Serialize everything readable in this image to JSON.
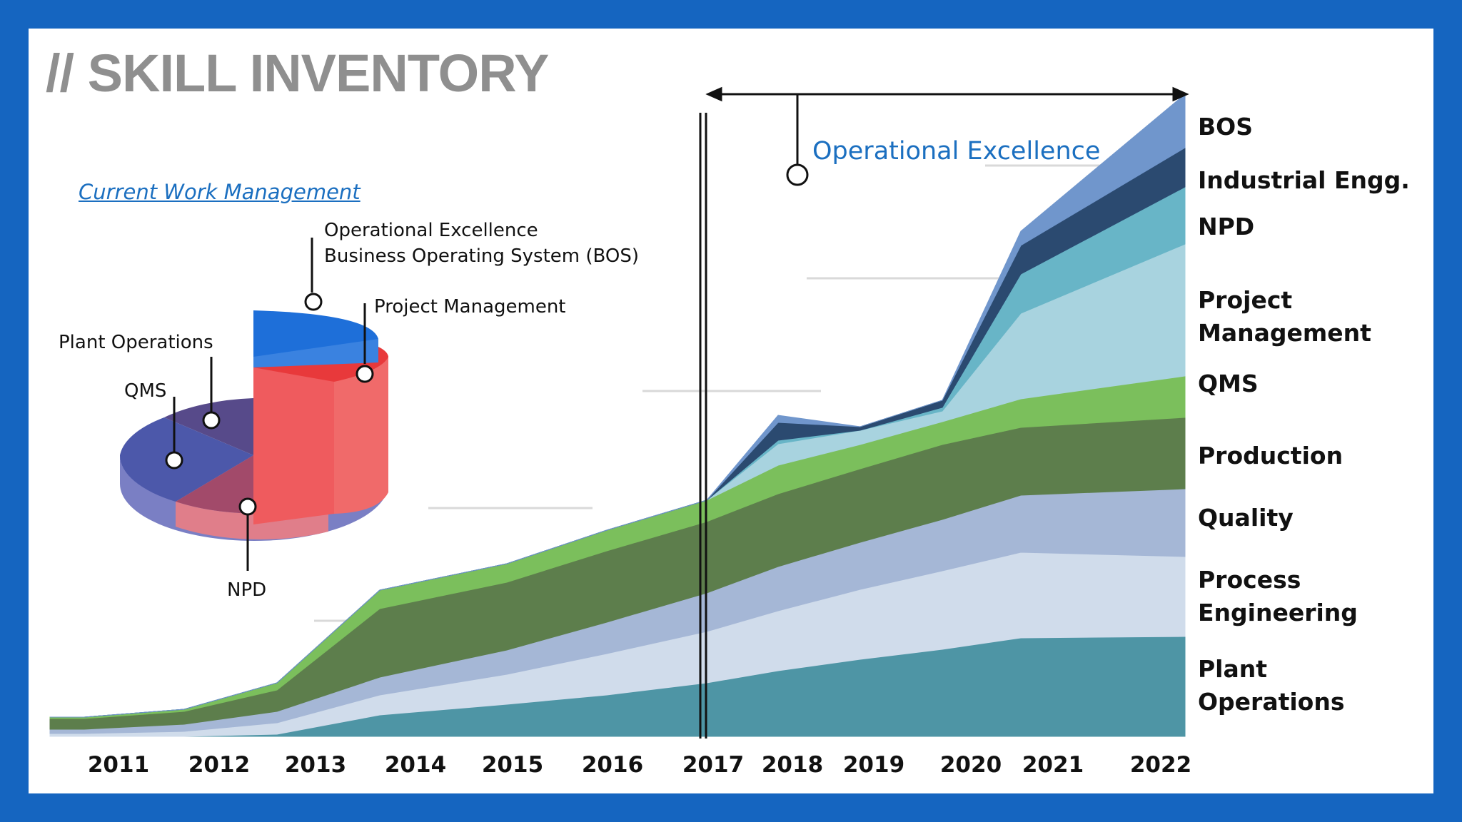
{
  "title": "// SKILL INVENTORY",
  "pie": {
    "subtitle": "Current Work Management",
    "labels": {
      "opex_line1": "Operational Excellence",
      "opex_line2": "Business Operating System (BOS)",
      "project_management": "Project Management",
      "plant_operations": "Plant Operations",
      "qms": "QMS",
      "npd": "NPD"
    }
  },
  "annotation": {
    "opex": "Operational Excellence"
  },
  "colors": {
    "background_border": "#1565c0",
    "title": "#8f8f8f",
    "accent_blue": "#1b6fc0"
  },
  "chart_data": {
    "type": "area",
    "stacked": true,
    "title": "// SKILL INVENTORY",
    "categories": [
      "2011",
      "2012",
      "2013",
      "2014",
      "2015",
      "2016",
      "2017",
      "2018",
      "2019",
      "2020",
      "2021",
      "2022"
    ],
    "x": [
      2011,
      2012,
      2013,
      2014,
      2015,
      2016,
      2017,
      2018,
      2019,
      2020,
      2021,
      2022
    ],
    "ylim": [
      0,
      900
    ],
    "y_axis_visible": false,
    "series": [
      {
        "name": "Plant Operations",
        "color": "#4e95a5",
        "values": [
          0,
          0,
          3,
          30,
          45,
          58,
          75,
          92,
          108,
          122,
          138,
          140
        ]
      },
      {
        "name": "Process Engineering",
        "color": "#d0dceb",
        "values": [
          4,
          7,
          16,
          28,
          42,
          58,
          72,
          84,
          98,
          110,
          120,
          112
        ]
      },
      {
        "name": "Quality",
        "color": "#a5b7d6",
        "values": [
          6,
          10,
          16,
          25,
          34,
          44,
          54,
          62,
          66,
          72,
          80,
          95
        ]
      },
      {
        "name": "Production",
        "color": "#5d7e4c",
        "values": [
          15,
          18,
          30,
          96,
          95,
          100,
          100,
          102,
          103,
          105,
          95,
          100
        ]
      },
      {
        "name": "QMS",
        "color": "#7bbf5c",
        "values": [
          2,
          3,
          10,
          26,
          26,
          29,
          30,
          40,
          34,
          32,
          40,
          58
        ]
      },
      {
        "name": "Project Management",
        "color": "#a8d3df",
        "values": [
          0,
          0,
          0,
          0,
          0,
          0,
          0,
          30,
          20,
          15,
          120,
          185
        ]
      },
      {
        "name": "NPD",
        "color": "#68b5c7",
        "values": [
          0,
          0,
          0,
          0,
          0,
          0,
          0,
          5,
          0,
          5,
          55,
          80
        ]
      },
      {
        "name": "Industrial Engg.",
        "color": "#2b4a70",
        "values": [
          0,
          0,
          0,
          0,
          0,
          0,
          0,
          25,
          5,
          10,
          40,
          55
        ]
      },
      {
        "name": "BOS",
        "color": "#7096cc",
        "values": [
          0,
          0,
          0,
          0,
          0,
          0,
          0,
          10,
          0,
          0,
          20,
          75
        ]
      }
    ],
    "vertical_marker": "2017",
    "annotation": "Operational Excellence"
  },
  "pie_chart_data": {
    "type": "pie",
    "title": "Current Work Management",
    "slices": [
      {
        "name": "Project Management",
        "value": 25,
        "color": "#e8393b"
      },
      {
        "name": "Operational Excellence Business Operating System (BOS)",
        "value": 25,
        "color": "#1e6fd9"
      },
      {
        "name": "Plant Operations",
        "value": 13,
        "color": "#5a4f8f"
      },
      {
        "name": "QMS",
        "value": 21,
        "color": "#5a66b8"
      },
      {
        "name": "NPD",
        "value": 16,
        "color": "#a24a6a"
      }
    ]
  }
}
